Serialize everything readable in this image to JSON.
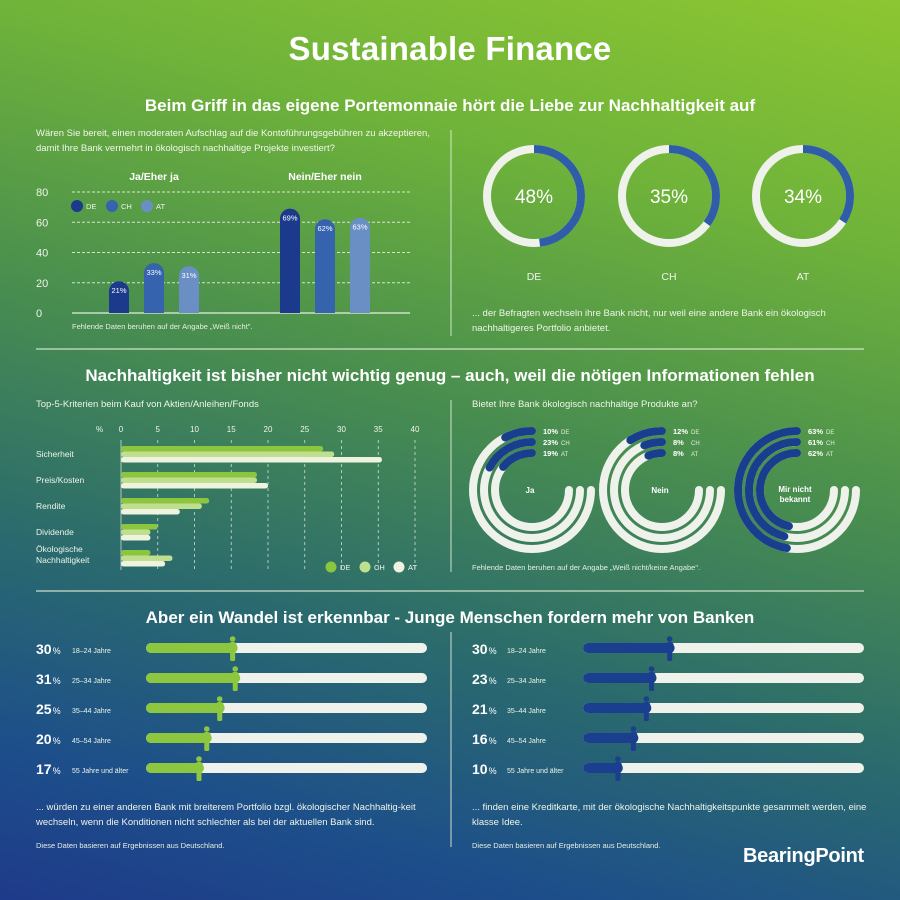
{
  "header": {
    "title": "Sustainable Finance"
  },
  "section1": {
    "title": "Beim Griff in das eigene Portemonnaie hört die Liebe zur Nachhaltigkeit auf",
    "question": "Wären Sie bereit, einen moderaten Aufschlag auf die Kontoführungsgebühren zu akzeptieren, damit Ihre Bank vermehrt in ökologisch nachhaltige Projekte investiert?",
    "footnote": "Fehlende Daten beruhen auf der Angabe „Weiß nicht\".",
    "donut_caption": "... der Befragten wechseln ihre Bank nicht, nur weil eine andere Bank ein ökologisch nachhaltigeres Portfolio anbietet."
  },
  "section2": {
    "title": "Nachhaltigkeit ist bisher nicht wichtig genug – auch, weil die nötigen Informationen fehlen",
    "bar_subtitle": "Top-5-Kriterien beim Kauf von Aktien/Anleihen/Fonds",
    "radial_question": "Bietet Ihre Bank ökologisch nachhaltige Produkte an?",
    "radial_footnote": "Fehlende Daten beruhen auf der Angabe „Weiß nicht/keine Angabe\"."
  },
  "section3": {
    "title": "Aber ein Wandel ist erkennbar - Junge Menschen fordern mehr von Banken",
    "left_caption": "... würden zu einer anderen Bank mit breiterem Portfolio bzgl. ökologischer Nachhaltig-keit wechseln, wenn die Konditionen nicht schlechter als bei der aktuellen Bank sind.",
    "left_note": "Diese Daten basieren auf Ergebnissen aus Deutschland.",
    "right_caption": "... finden eine Kreditkarte, mit der ökologische Nachhaltigkeitspunkte gesammelt werden, eine klasse Idee.",
    "right_note": "Diese Daten basieren auf Ergebnissen aus Deutschland."
  },
  "footer": {
    "brand": "BearingPoint"
  },
  "colors": {
    "de_blue": "#1b3a8c",
    "ch_blue": "#3563ad",
    "at_blue": "#6a8fc4",
    "donut_blue": "#2f5da8",
    "radial_blue": "#183e8d",
    "track_white": "#eef2ea",
    "de_green": "#8cc63f",
    "ch_green": "#c0df8e",
    "at_green": "#eef3df",
    "slider_green": "#8dc63f",
    "slider_blue": "#1b3f8f"
  },
  "chart_data": [
    {
      "id": "fee-acceptance",
      "type": "bar",
      "title": "Wären Sie bereit, einen moderaten Aufschlag auf die Kontoführungsgebühren zu akzeptieren?",
      "categories": [
        "Ja/Eher ja",
        "Nein/Eher nein"
      ],
      "series": [
        {
          "name": "DE",
          "values": [
            21,
            69
          ]
        },
        {
          "name": "CH",
          "values": [
            33,
            62
          ]
        },
        {
          "name": "AT",
          "values": [
            31,
            63
          ]
        }
      ],
      "yticks": [
        0,
        20,
        40,
        60,
        80
      ],
      "ylim": [
        0,
        80
      ],
      "grid": true,
      "legend_position": "top-left",
      "value_labels": [
        "21%",
        "33%",
        "31%",
        "69%",
        "62%",
        "63%"
      ]
    },
    {
      "id": "no-switch",
      "type": "pie",
      "variant": "donut",
      "title": "... der Befragten wechseln ihre Bank nicht, nur weil eine andere Bank ein ökologisch nachhaltigeres Portfolio anbietet.",
      "categories": [
        "DE",
        "CH",
        "AT"
      ],
      "values": [
        48,
        35,
        34
      ],
      "labels": [
        "48%",
        "35%",
        "34%"
      ]
    },
    {
      "id": "top5-criteria",
      "type": "bar",
      "orientation": "horizontal",
      "title": "Top-5-Kriterien beim Kauf von Aktien/Anleihen/Fonds",
      "xlabel": "%",
      "categories": [
        "Sicherheit",
        "Preis/Kosten",
        "Rendite",
        "Dividende",
        "Ökologische Nachhaltigkeit"
      ],
      "series": [
        {
          "name": "DE",
          "values": [
            27.5,
            18.5,
            12,
            5,
            4
          ]
        },
        {
          "name": "CH",
          "values": [
            29,
            18.5,
            11,
            4,
            7
          ]
        },
        {
          "name": "AT",
          "values": [
            35.5,
            20,
            8,
            4,
            6
          ]
        }
      ],
      "xticks": [
        0,
        5,
        10,
        15,
        20,
        25,
        30,
        35,
        40
      ],
      "xlim": [
        0,
        40
      ],
      "grid": true,
      "legend_position": "bottom-right"
    },
    {
      "id": "bank-offers",
      "type": "pie",
      "variant": "radial-bar",
      "title": "Bietet Ihre Bank ökologisch nachhaltige Produkte an?",
      "groups": [
        {
          "label": "Ja",
          "values": {
            "DE": 10,
            "CH": 23,
            "AT": 19
          }
        },
        {
          "label": "Nein",
          "values": {
            "DE": 12,
            "CH": 8,
            "AT": 8
          }
        },
        {
          "label": "Mir nicht bekannt",
          "values": {
            "DE": 63,
            "CH": 61,
            "AT": 62
          }
        }
      ],
      "series_order": [
        "DE",
        "CH",
        "AT"
      ]
    },
    {
      "id": "switch-by-age",
      "type": "bar",
      "orientation": "horizontal",
      "variant": "slider",
      "title": "... würden zu einer anderen Bank mit breiterem Portfolio wechseln",
      "categories": [
        "18–24 Jahre",
        "25–34 Jahre",
        "35–44 Jahre",
        "45–54 Jahre",
        "55 Jahre und älter"
      ],
      "values": [
        30,
        31,
        25,
        20,
        17
      ],
      "labels": [
        "30",
        "31",
        "25",
        "20",
        "17"
      ],
      "xlim": [
        0,
        100
      ]
    },
    {
      "id": "creditcard-by-age",
      "type": "bar",
      "orientation": "horizontal",
      "variant": "slider",
      "title": "... finden eine Kreditkarte mit ökologischen Nachhaltigkeitspunkten eine klasse Idee",
      "categories": [
        "18–24 Jahre",
        "25–34 Jahre",
        "35–44 Jahre",
        "45–54 Jahre",
        "55 Jahre und älter"
      ],
      "values": [
        30,
        23,
        21,
        16,
        10
      ],
      "labels": [
        "30",
        "23",
        "21",
        "16",
        "10"
      ],
      "xlim": [
        0,
        100
      ]
    }
  ]
}
